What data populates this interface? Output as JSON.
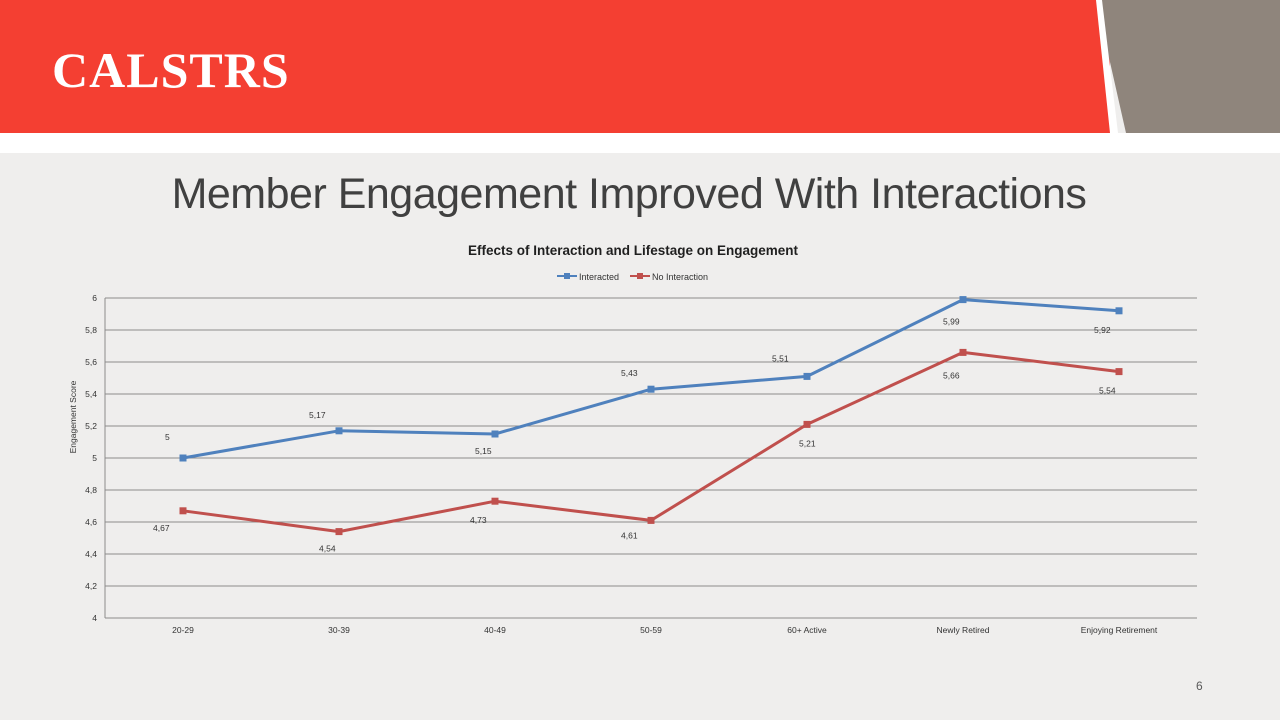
{
  "header": {
    "logo_text": "CALSTRS"
  },
  "slide": {
    "title": "Member Engagement Improved With Interactions",
    "page_number": "6"
  },
  "colors": {
    "banner_red": "#f43f32",
    "banner_gray": "#8f857c",
    "interacted": "#4f81bd",
    "no_interaction": "#c0504d"
  },
  "chart_data": {
    "type": "line",
    "title": "Effects of Interaction and Lifestage on Engagement",
    "xlabel": "",
    "ylabel": "Engagement Score",
    "ylim": [
      4,
      6
    ],
    "yticks": [
      4,
      4.2,
      4.4,
      4.6,
      4.8,
      5,
      5.2,
      5.4,
      5.6,
      5.8,
      6
    ],
    "ytick_labels": [
      "4",
      "4,2",
      "4,4",
      "4,6",
      "4,8",
      "5",
      "5,2",
      "5,4",
      "5,6",
      "5,8",
      "6"
    ],
    "categories": [
      "20-29",
      "30-39",
      "40-49",
      "50-59",
      "60+ Active",
      "Newly Retired",
      "Enjoying Retirement"
    ],
    "legend_position": "top",
    "grid": true,
    "series": [
      {
        "name": "Interacted",
        "color": "#4f81bd",
        "values": [
          5,
          5.17,
          5.15,
          5.43,
          5.51,
          5.99,
          5.92
        ],
        "labels": [
          "5",
          "5,17",
          "5,15",
          "5,43",
          "5,51",
          "5,99",
          "5,92"
        ]
      },
      {
        "name": "No Interaction",
        "color": "#c0504d",
        "values": [
          4.67,
          4.54,
          4.73,
          4.61,
          5.21,
          5.66,
          5.54
        ],
        "labels": [
          "4,67",
          "4,54",
          "4,73",
          "4,61",
          "5,21",
          "5,66",
          "5,54"
        ]
      }
    ]
  }
}
